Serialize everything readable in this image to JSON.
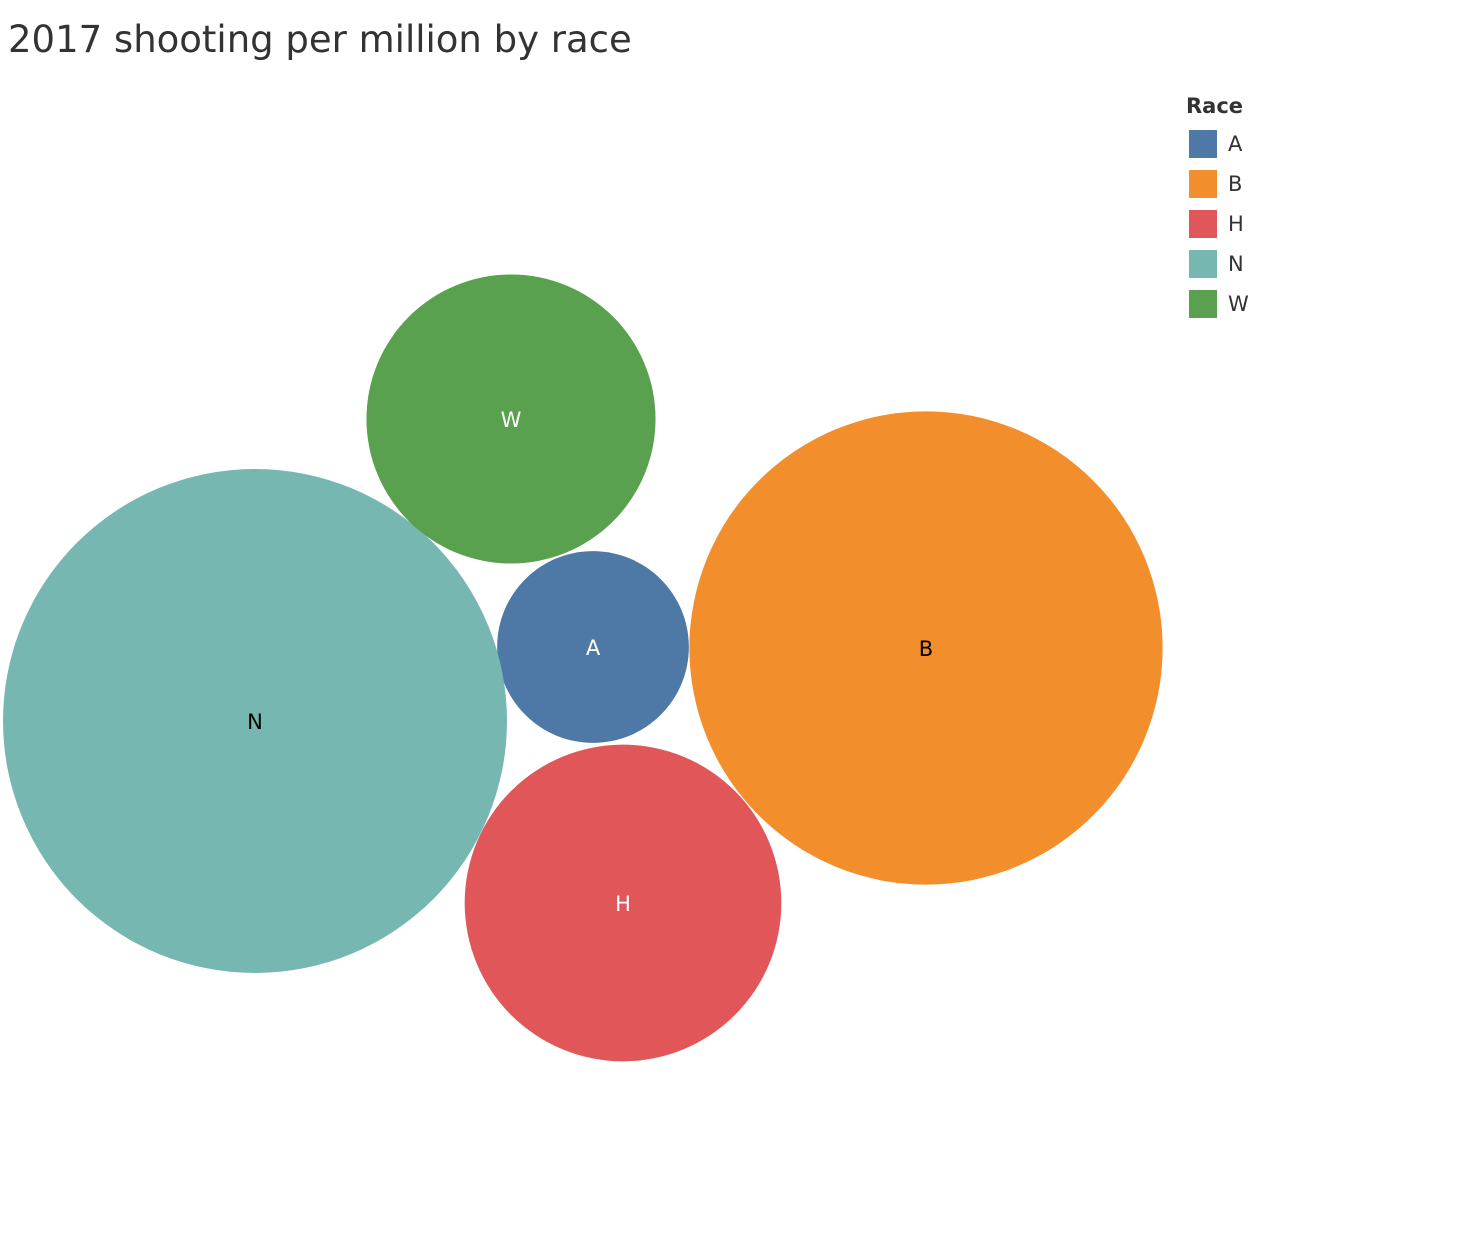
{
  "chart_data": {
    "type": "bubble",
    "title": "2017 shooting per million by race",
    "legend": {
      "title": "Race",
      "placement": "top-right"
    },
    "series": [
      {
        "name": "A",
        "value": 11,
        "color": "#4e79a7",
        "label_color": "#ffffff"
      },
      {
        "name": "B",
        "value": 67,
        "color": "#f28e2b",
        "label_color": "#000000"
      },
      {
        "name": "H",
        "value": 30,
        "color": "#e15759",
        "label_color": "#ffffff"
      },
      {
        "name": "N",
        "value": 76,
        "color": "#76b7b2",
        "label_color": "#000000"
      },
      {
        "name": "W",
        "value": 25,
        "color": "#59a14f",
        "label_color": "#ffffff"
      }
    ]
  }
}
